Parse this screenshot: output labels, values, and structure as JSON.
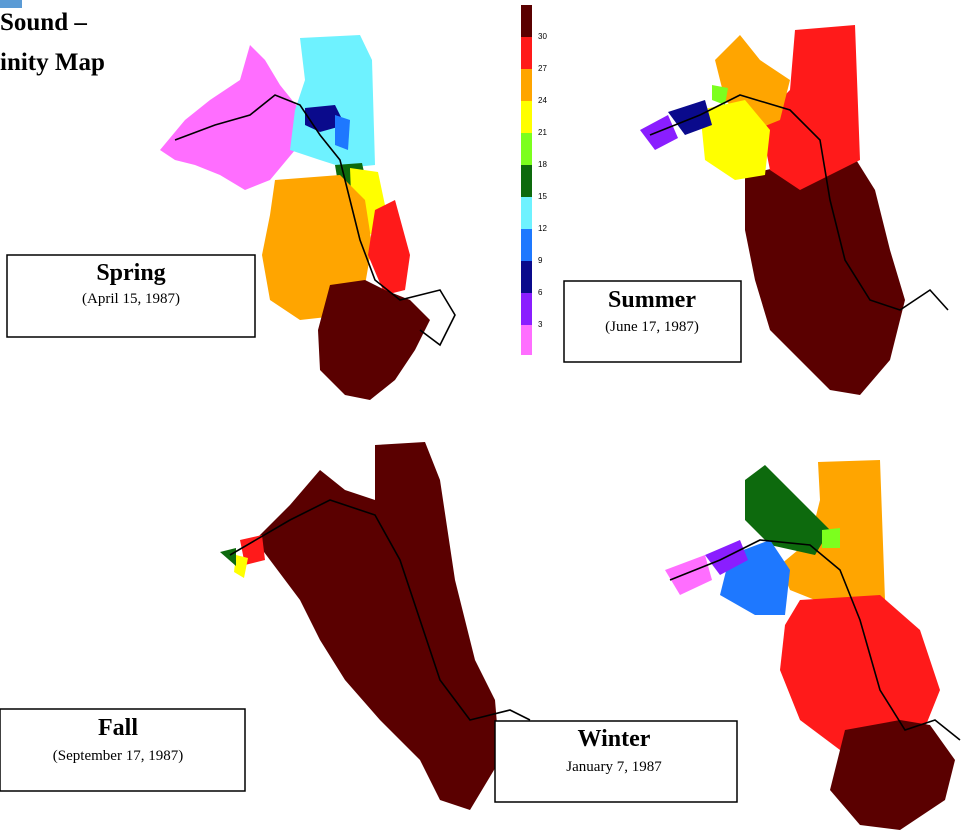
{
  "header": {
    "title_lines": [
      "Sound –",
      "inity Map"
    ]
  },
  "legend": {
    "ticks": [
      30,
      27,
      24,
      21,
      18,
      15,
      12,
      9,
      6,
      3
    ]
  },
  "panels": [
    {
      "season": "Spring",
      "date": "(April 15, 1987)"
    },
    {
      "season": "Summer",
      "date": "(June 17, 1987)"
    },
    {
      "season": "Fall",
      "date": "(September 17, 1987)"
    },
    {
      "season": "Winter",
      "date": "January 7, 1987"
    }
  ]
}
